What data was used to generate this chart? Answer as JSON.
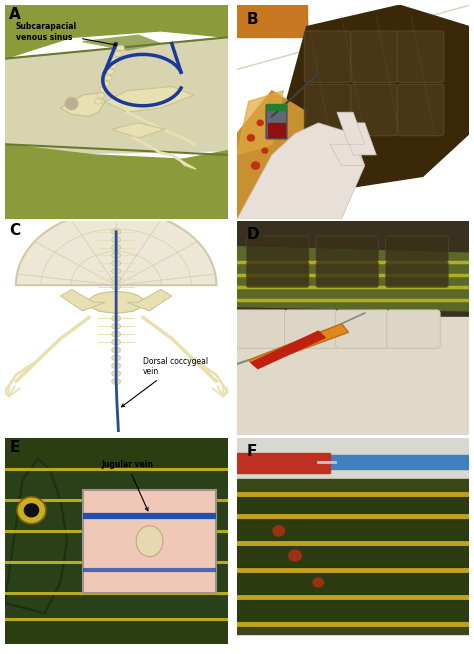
{
  "figsize": [
    4.74,
    6.54
  ],
  "dpi": 100,
  "background_color": "#ffffff",
  "panel_A": {
    "bg": "#e8e8d8",
    "carapace_color": "#8b9a3a",
    "carapace_edge": "#6a7830",
    "bone_color": "#e8e0b0",
    "bone_edge": "#c8c090",
    "vein_color": "#1a3a9a",
    "annotation": "Subcarapacial\nvenous sinus",
    "label": "A"
  },
  "panel_B": {
    "bg_top": "#c8c0b0",
    "shell_dark": "#3a2a10",
    "shell_mid": "#5a4820",
    "yellow": "#c8a030",
    "glove": "#e8e0d0",
    "label": "B"
  },
  "panel_C": {
    "bg": "#f0ede0",
    "shell_fill": "#ede8d5",
    "shell_edge": "#d0c8a8",
    "bone_color": "#e8e0b0",
    "bone_edge": "#c8c090",
    "vein_color": "#2a4a9a",
    "annotation": "Dorsal coccygeal\nvein",
    "label": "C"
  },
  "panel_D": {
    "bg": "#c0a870",
    "glove": "#e0d8c8",
    "turtle_green": "#6a7830",
    "yellow_stripe": "#c8c030",
    "syringe_red": "#c03020",
    "syringe_orange": "#e08020",
    "label": "D"
  },
  "panel_E": {
    "bg": "#4a5a28",
    "head_dark": "#2a3a18",
    "stripe_yellow": "#c8b820",
    "inset_pink": "#f0c8b8",
    "vein_blue": "#2050b0",
    "annotation": "Jugular vein",
    "label": "E"
  },
  "panel_F": {
    "bg": "#7a8838",
    "stripe_yellow": "#c8a820",
    "stripe_dark": "#4a5818",
    "syringe_blue": "#4080c0",
    "syringe_red": "#c03020",
    "label": "F"
  }
}
